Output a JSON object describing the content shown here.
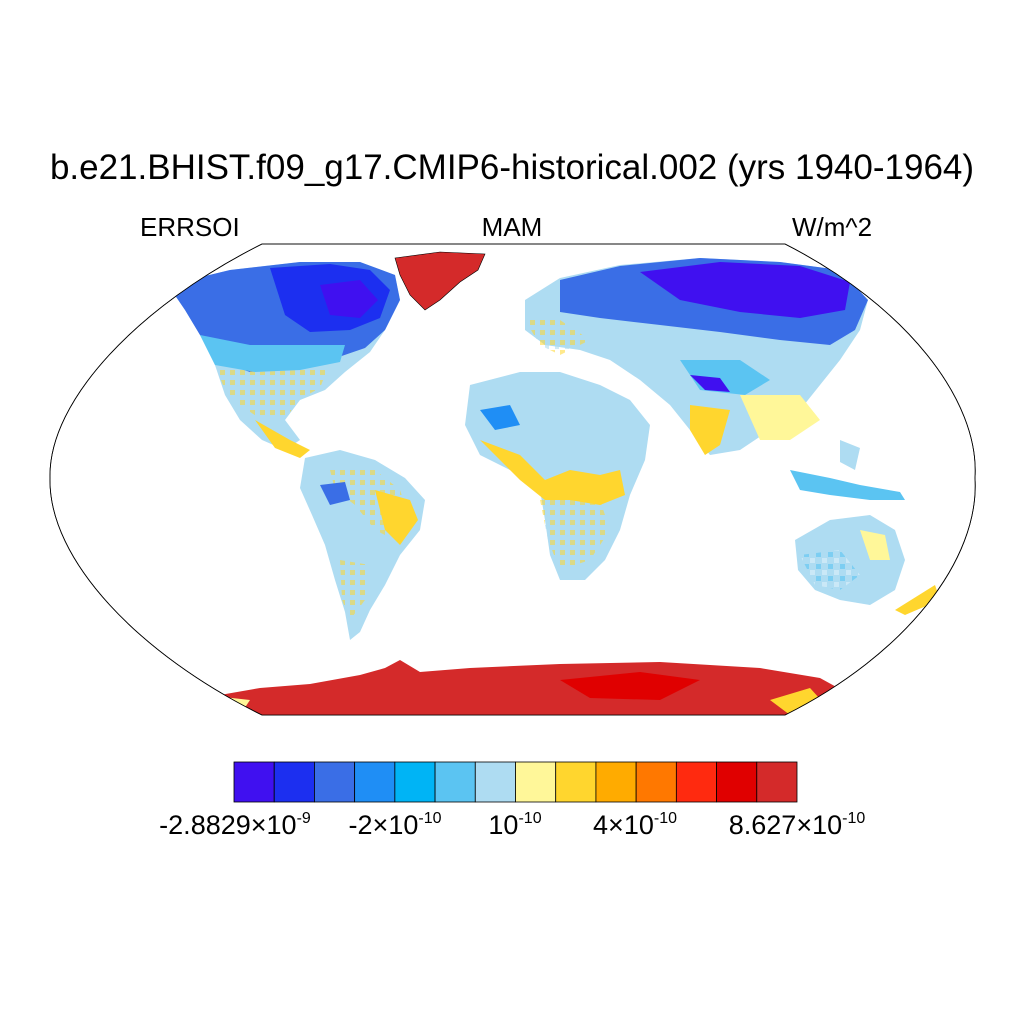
{
  "title": "b.e21.BHIST.f09_g17.CMIP6-historical.002 (yrs 1940-1964)",
  "left_label": "ERRSOI",
  "center_label": "MAM",
  "right_label": "W/m^2",
  "colorbar": {
    "colors": [
      "#4010f0",
      "#1c2ff0",
      "#3a6ee6",
      "#1f8ef5",
      "#00b4f5",
      "#5bc4f2",
      "#aedcf2",
      "#fff799",
      "#ffd62e",
      "#ffab00",
      "#ff7800",
      "#ff2a0f",
      "#e00000",
      "#d42a2a"
    ],
    "labels": [
      {
        "mantissa": "-2.8829",
        "times": "×",
        "base": "10",
        "exp": "-9"
      },
      {
        "mantissa": "-2",
        "times": "×",
        "base": "10",
        "exp": "-10"
      },
      {
        "mantissa": "",
        "times": "",
        "base": "10",
        "exp": "-10"
      },
      {
        "mantissa": "4",
        "times": "×",
        "base": "10",
        "exp": "-10"
      },
      {
        "mantissa": "8.627",
        "times": "×",
        "base": "10",
        "exp": "-10"
      }
    ]
  },
  "map": {
    "projection": "robinson",
    "ocean_color": "#ffffff",
    "antarctica_color": "#d42a2a",
    "greenland_color": "#d42a2a"
  }
}
